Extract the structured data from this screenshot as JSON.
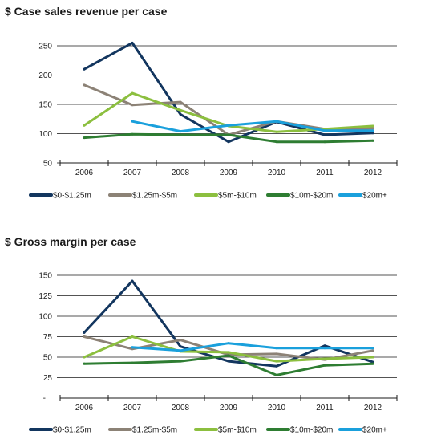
{
  "chart_data": [
    {
      "type": "line",
      "title": "$ Case sales revenue per case",
      "xlabel": "",
      "ylabel": "",
      "categories": [
        "2006",
        "2007",
        "2008",
        "2009",
        "2010",
        "2011",
        "2012"
      ],
      "ylim": [
        50,
        250
      ],
      "yticks": [
        50,
        100,
        150,
        200,
        250
      ],
      "grid": true,
      "legend_position": "bottom",
      "series": [
        {
          "name": "$0-$1.25m",
          "color": "#13365f",
          "values": [
            210,
            255,
            133,
            86,
            120,
            98,
            101
          ]
        },
        {
          "name": "$1.25m-$5m",
          "color": "#8c8276",
          "values": [
            183,
            149,
            154,
            98,
            121,
            108,
            109
          ]
        },
        {
          "name": "$5m-$10m",
          "color": "#8cbf3f",
          "values": [
            114,
            169,
            140,
            113,
            103,
            108,
            113
          ]
        },
        {
          "name": "$10m-$20m",
          "color": "#2e7d32",
          "values": [
            93,
            99,
            98,
            98,
            86,
            86,
            88
          ]
        },
        {
          "name": "$20m+",
          "color": "#1aa0dc",
          "values": [
            null,
            121,
            104,
            114,
            121,
            105,
            105
          ]
        }
      ]
    },
    {
      "type": "line",
      "title": "$ Gross margin per case",
      "xlabel": "",
      "ylabel": "",
      "categories": [
        "2006",
        "2007",
        "2008",
        "2009",
        "2010",
        "2011",
        "2012"
      ],
      "ylim": [
        0,
        150
      ],
      "yticks": [
        25,
        50,
        75,
        100,
        125,
        150
      ],
      "grid": true,
      "legend_position": "bottom",
      "series": [
        {
          "name": "$0-$1.25m",
          "color": "#13365f",
          "values": [
            80,
            143,
            63,
            45,
            39,
            64,
            44
          ]
        },
        {
          "name": "$1.25m-$5m",
          "color": "#8c8276",
          "values": [
            75,
            60,
            71,
            53,
            54,
            47,
            58
          ]
        },
        {
          "name": "$5m-$10m",
          "color": "#8cbf3f",
          "values": [
            50,
            75,
            57,
            56,
            45,
            48,
            50
          ]
        },
        {
          "name": "$10m-$20m",
          "color": "#2e7d32",
          "values": [
            42,
            43,
            45,
            52,
            28,
            40,
            42
          ]
        },
        {
          "name": "$20m+",
          "color": "#1aa0dc",
          "values": [
            null,
            62,
            58,
            67,
            61,
            61,
            61
          ]
        }
      ]
    }
  ]
}
